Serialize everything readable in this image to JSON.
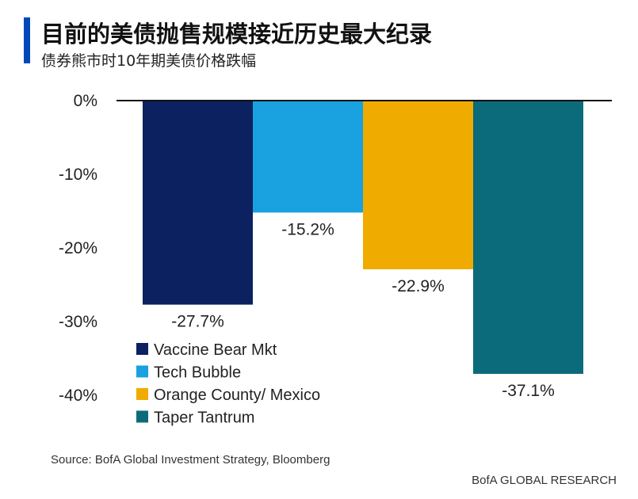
{
  "header": {
    "title": "目前的美债抛售规模接近历史最大纪录",
    "subtitle": "债券熊市时10年期美债价格跌幅"
  },
  "chart_data": {
    "type": "bar",
    "title": "目前的美债抛售规模接近历史最大纪录",
    "subtitle": "债券熊市时10年期美债价格跌幅",
    "categories": [
      "Vaccine Bear Mkt",
      "Tech Bubble",
      "Orange County/ Mexico",
      "Taper Tantrum"
    ],
    "values": [
      -27.7,
      -15.2,
      -22.9,
      -37.1
    ],
    "data_labels": [
      "-27.7%",
      "-15.2%",
      "-22.9%",
      "-37.1%"
    ],
    "colors": [
      "#0b2160",
      "#19a1e0",
      "#f0ab00",
      "#0b6b7a"
    ],
    "ylim": [
      -40,
      0
    ],
    "yticks": [
      0,
      -10,
      -20,
      -30,
      -40
    ],
    "ytick_labels": [
      "0%",
      "-10%",
      "-20%",
      "-30%",
      "-40%"
    ],
    "xlabel": "",
    "ylabel": "",
    "grid": false,
    "legend": {
      "position": "bottom-left",
      "entries": [
        "Vaccine Bear Mkt",
        "Tech Bubble",
        "Orange County/ Mexico",
        "Taper Tantrum"
      ]
    }
  },
  "footer": {
    "source": "Source:  BofA Global Investment Strategy, Bloomberg",
    "brand": "BofA GLOBAL RESEARCH"
  }
}
